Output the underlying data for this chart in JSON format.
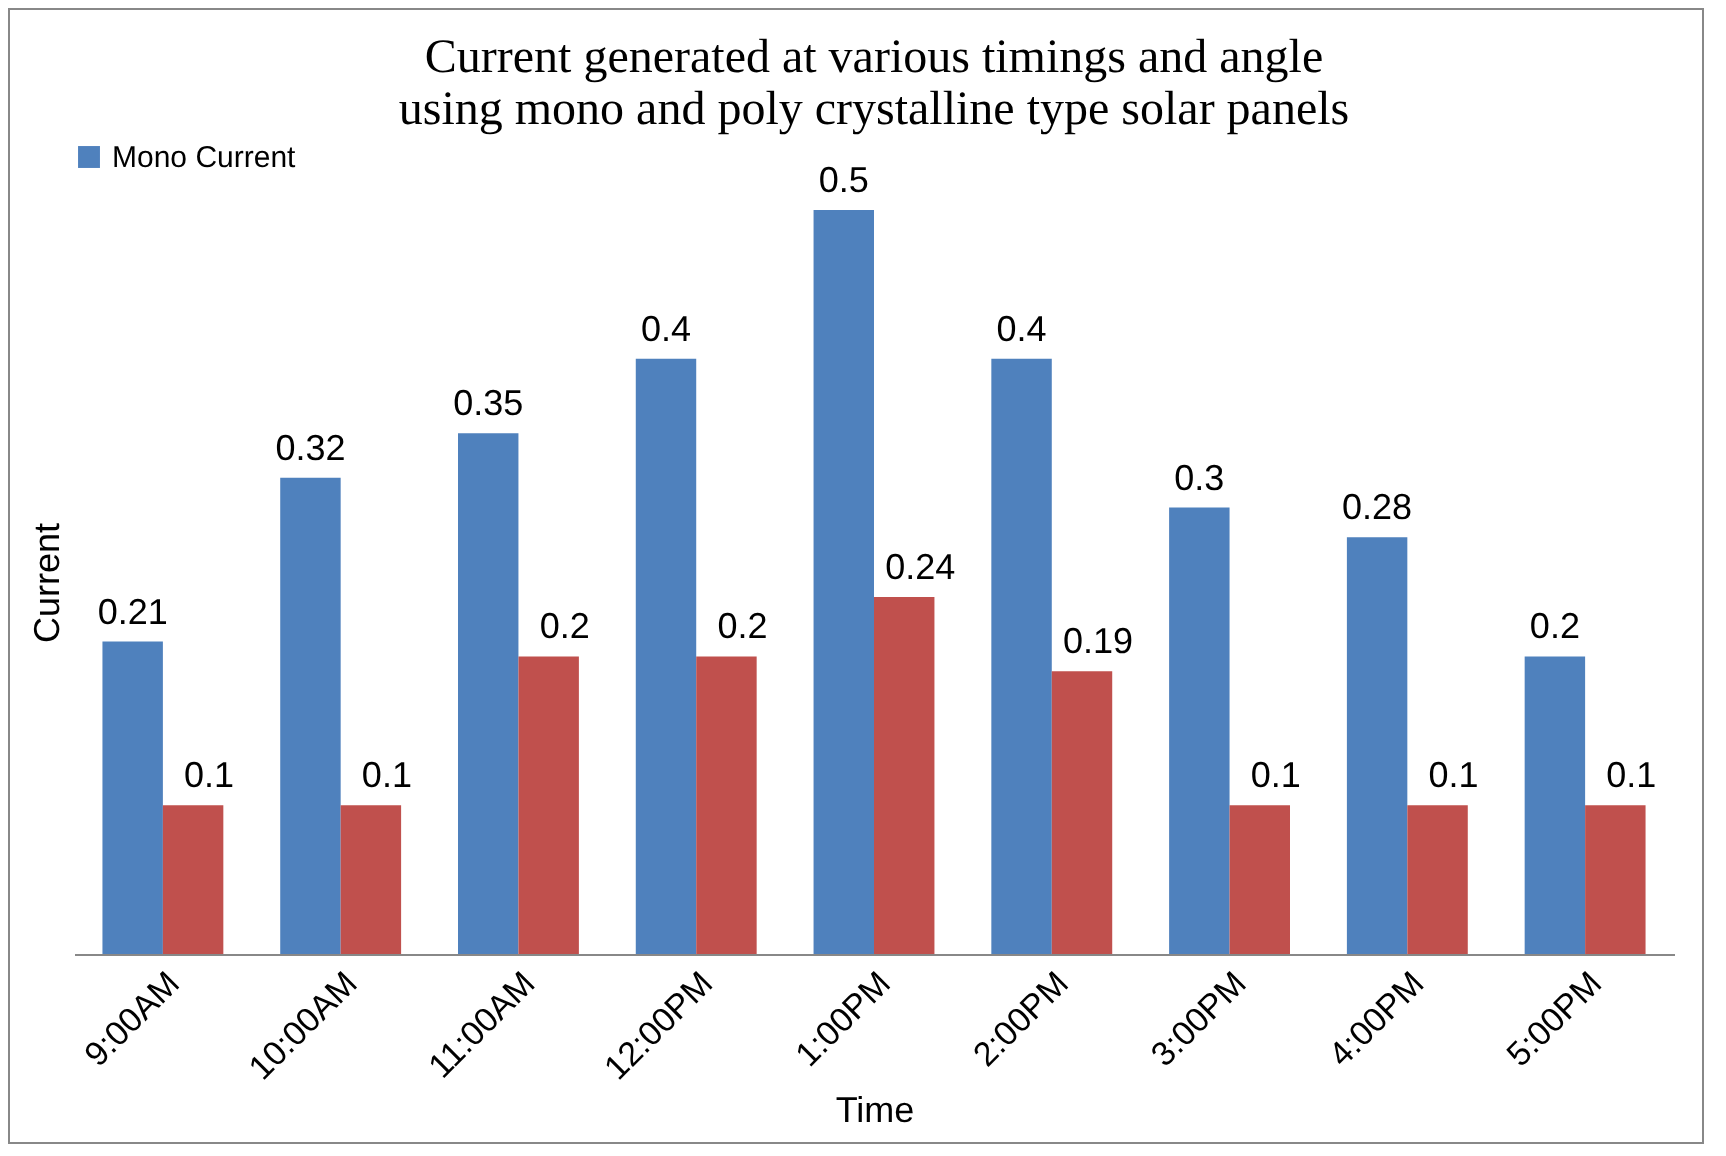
{
  "chart_data": {
    "type": "bar",
    "title": "Current generated at various timings and angle\nusing mono and poly crystalline type solar panels",
    "xlabel": "Time",
    "ylabel": "Current",
    "categories": [
      "9:00AM",
      "10:00AM",
      "11:00AM",
      "12:00PM",
      "1:00PM",
      "2:00PM",
      "3:00PM",
      "4:00PM",
      "5:00PM"
    ],
    "series": [
      {
        "name": "Mono Current",
        "color": "#4f81bd",
        "values": [
          0.21,
          0.32,
          0.35,
          0.4,
          0.5,
          0.4,
          0.3,
          0.28,
          0.2
        ]
      },
      {
        "color": "#c0504d",
        "values": [
          0.1,
          0.1,
          0.2,
          0.2,
          0.24,
          0.19,
          0.1,
          0.1,
          0.1
        ]
      }
    ],
    "relative": false,
    "data_labels": true,
    "legend": "top",
    "grid": false
  }
}
